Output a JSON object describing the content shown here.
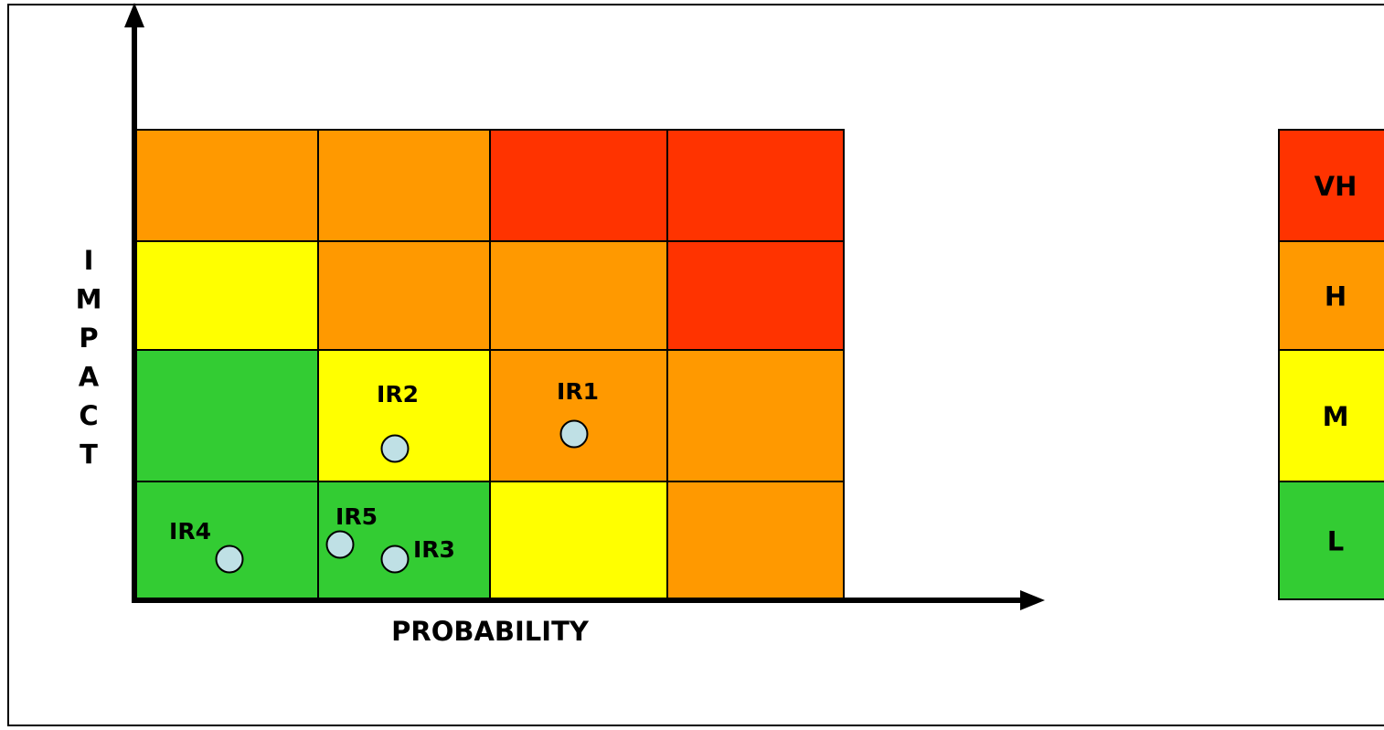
{
  "matrix": {
    "x_axis_label": "PROBABILITY",
    "y_axis_label": "IMPACT",
    "levels": {
      "L": {
        "label": "L",
        "color": "#33cc33"
      },
      "M": {
        "label": "M",
        "color": "#ffff00"
      },
      "H": {
        "label": "H",
        "color": "#ff9900"
      },
      "VH": {
        "label": "VH",
        "color": "#ff3300"
      }
    },
    "grid_rows_top_to_bottom": [
      [
        "H",
        "H",
        "VH",
        "VH"
      ],
      [
        "M",
        "H",
        "H",
        "VH"
      ],
      [
        "L",
        "M",
        "H",
        "H"
      ],
      [
        "L",
        "L",
        "M",
        "H"
      ]
    ],
    "risks": [
      {
        "id": "IR1",
        "label": "IR1",
        "probability_col": 3,
        "impact_row": 2
      },
      {
        "id": "IR2",
        "label": "IR2",
        "probability_col": 2,
        "impact_row": 2
      },
      {
        "id": "IR3",
        "label": "IR3",
        "probability_col": 2,
        "impact_row": 1
      },
      {
        "id": "IR4",
        "label": "IR4",
        "probability_col": 1,
        "impact_row": 1
      },
      {
        "id": "IR5",
        "label": "IR5",
        "probability_col": 2,
        "impact_row": 1
      }
    ],
    "marker_color": "#bfe0e5"
  },
  "legend": {
    "items_top_to_bottom": [
      "VH",
      "H",
      "M",
      "L"
    ]
  }
}
